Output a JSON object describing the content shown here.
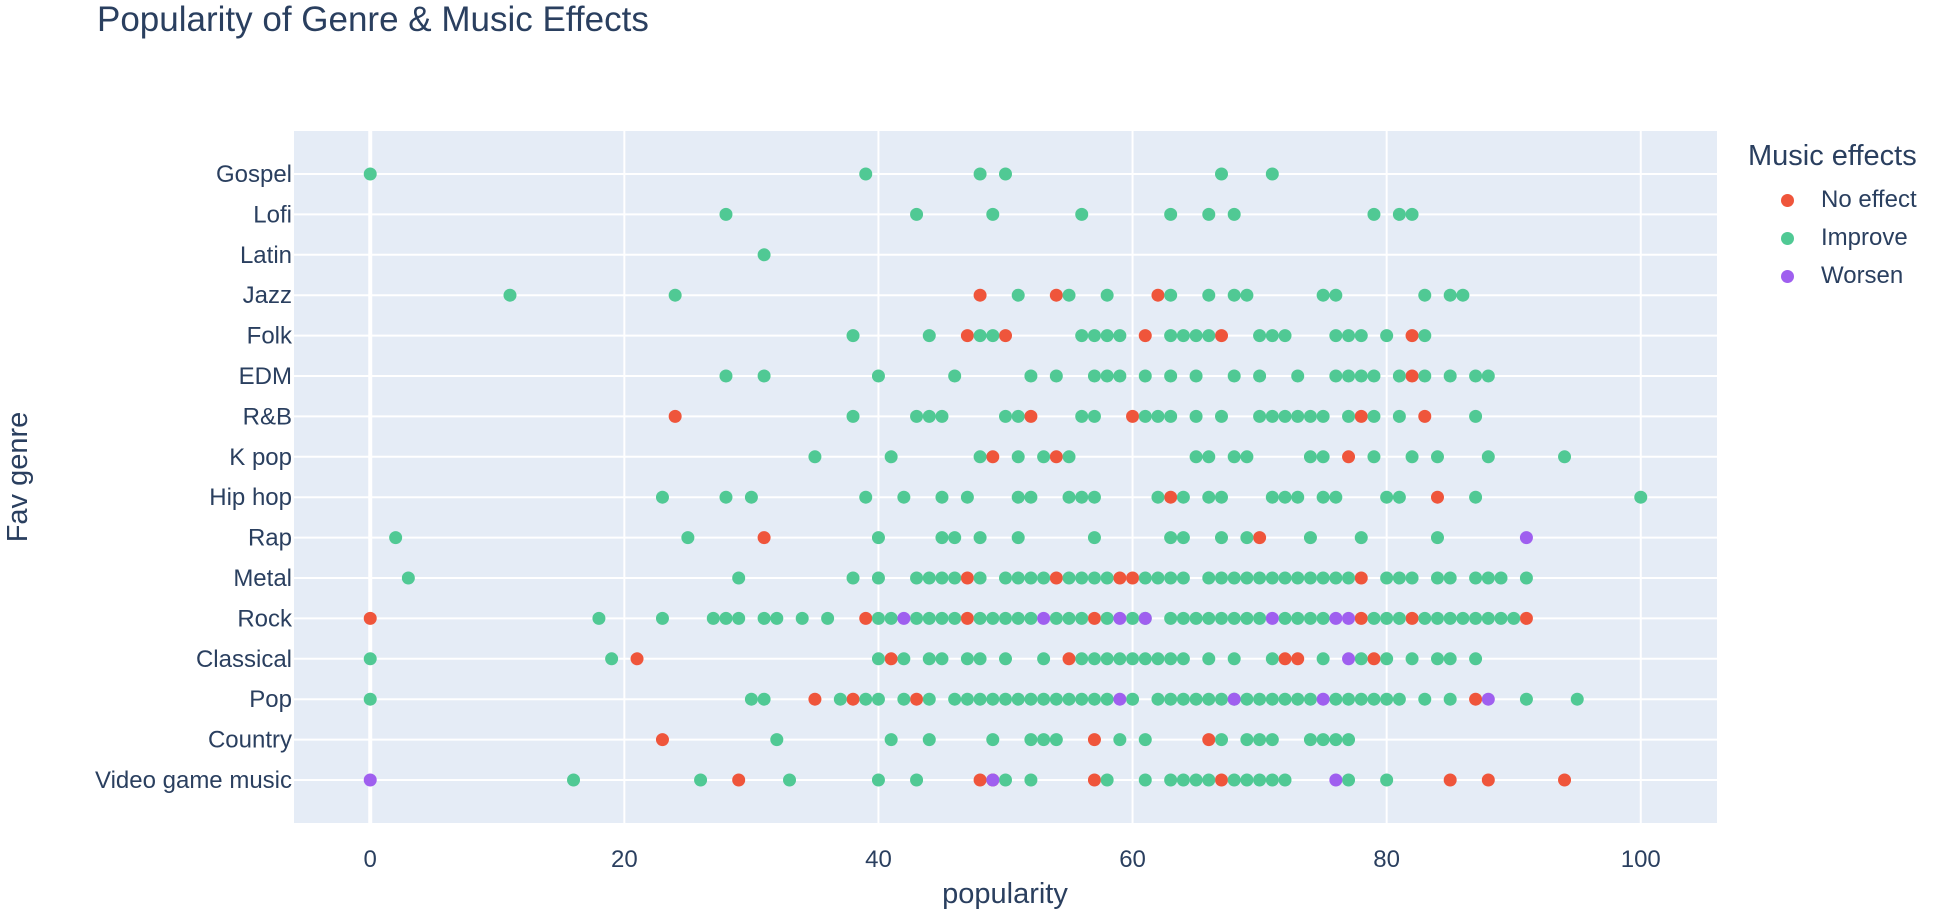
{
  "chart_data": {
    "type": "scatter",
    "title": "Popularity of Genre & Music Effects",
    "xlabel": "popularity",
    "ylabel": "Fav genre",
    "xlim": [
      -6,
      106
    ],
    "x_ticks": [
      0,
      20,
      40,
      60,
      80,
      100
    ],
    "grid": true,
    "legend_title": "Music effects",
    "legend_position": "right",
    "categories": [
      "Gospel",
      "Lofi",
      "Latin",
      "Jazz",
      "Folk",
      "EDM",
      "R&B",
      "K pop",
      "Hip hop",
      "Rap",
      "Metal",
      "Rock",
      "Classical",
      "Pop",
      "Country",
      "Video game music"
    ],
    "series": [
      {
        "name": "No effect",
        "color": "#EF553B",
        "points": [
          {
            "genre": "Jazz",
            "x": [
              48,
              54,
              62
            ]
          },
          {
            "genre": "Folk",
            "x": [
              47,
              50,
              61,
              67,
              82
            ]
          },
          {
            "genre": "EDM",
            "x": [
              82
            ]
          },
          {
            "genre": "R&B",
            "x": [
              24,
              52,
              60,
              78,
              83
            ]
          },
          {
            "genre": "K pop",
            "x": [
              49,
              54,
              77
            ]
          },
          {
            "genre": "Hip hop",
            "x": [
              63,
              84
            ]
          },
          {
            "genre": "Rap",
            "x": [
              31,
              70
            ]
          },
          {
            "genre": "Metal",
            "x": [
              47,
              54,
              59,
              60,
              78
            ]
          },
          {
            "genre": "Rock",
            "x": [
              0,
              39,
              47,
              57,
              78,
              82,
              91
            ]
          },
          {
            "genre": "Classical",
            "x": [
              21,
              41,
              55,
              72,
              73,
              79
            ]
          },
          {
            "genre": "Pop",
            "x": [
              35,
              38,
              43,
              87
            ]
          },
          {
            "genre": "Country",
            "x": [
              23,
              57,
              66
            ]
          },
          {
            "genre": "Video game music",
            "x": [
              29,
              48,
              49,
              57,
              67,
              85,
              88,
              94
            ]
          }
        ]
      },
      {
        "name": "Improve",
        "color": "#50C994",
        "points": [
          {
            "genre": "Gospel",
            "x": [
              0,
              39,
              48,
              50,
              67,
              71
            ]
          },
          {
            "genre": "Lofi",
            "x": [
              28,
              43,
              49,
              56,
              63,
              66,
              68,
              79,
              81,
              82
            ]
          },
          {
            "genre": "Latin",
            "x": [
              31
            ]
          },
          {
            "genre": "Jazz",
            "x": [
              11,
              24,
              51,
              55,
              58,
              63,
              66,
              68,
              69,
              75,
              76,
              83,
              85,
              86
            ]
          },
          {
            "genre": "Folk",
            "x": [
              38,
              44,
              48,
              49,
              56,
              57,
              58,
              59,
              63,
              64,
              65,
              66,
              70,
              71,
              72,
              76,
              77,
              78,
              80,
              83
            ]
          },
          {
            "genre": "EDM",
            "x": [
              28,
              31,
              40,
              46,
              52,
              54,
              57,
              58,
              59,
              61,
              63,
              65,
              68,
              70,
              73,
              76,
              77,
              78,
              79,
              81,
              83,
              85,
              87,
              88
            ]
          },
          {
            "genre": "R&B",
            "x": [
              38,
              43,
              44,
              45,
              50,
              51,
              56,
              57,
              61,
              62,
              63,
              65,
              67,
              70,
              71,
              72,
              73,
              74,
              75,
              77,
              79,
              81,
              87
            ]
          },
          {
            "genre": "K pop",
            "x": [
              35,
              41,
              48,
              51,
              53,
              55,
              65,
              66,
              68,
              69,
              74,
              75,
              79,
              82,
              84,
              88,
              94
            ]
          },
          {
            "genre": "Hip hop",
            "x": [
              23,
              28,
              30,
              39,
              42,
              45,
              47,
              51,
              52,
              55,
              56,
              57,
              62,
              64,
              66,
              67,
              71,
              72,
              73,
              75,
              76,
              80,
              81,
              87,
              100
            ]
          },
          {
            "genre": "Rap",
            "x": [
              2,
              25,
              40,
              45,
              46,
              48,
              51,
              57,
              63,
              64,
              67,
              69,
              74,
              78,
              84
            ]
          },
          {
            "genre": "Metal",
            "x": [
              3,
              29,
              38,
              40,
              43,
              44,
              45,
              46,
              48,
              50,
              51,
              52,
              53,
              55,
              56,
              57,
              58,
              61,
              62,
              63,
              64,
              66,
              67,
              68,
              69,
              70,
              71,
              72,
              73,
              74,
              75,
              76,
              77,
              80,
              81,
              82,
              84,
              85,
              87,
              88,
              89,
              91
            ]
          },
          {
            "genre": "Rock",
            "x": [
              18,
              23,
              27,
              28,
              29,
              31,
              32,
              34,
              36,
              40,
              41,
              43,
              44,
              45,
              46,
              48,
              49,
              50,
              51,
              52,
              54,
              55,
              56,
              58,
              60,
              61,
              63,
              64,
              65,
              66,
              67,
              68,
              69,
              70,
              72,
              73,
              74,
              75,
              79,
              80,
              81,
              83,
              84,
              85,
              86,
              87,
              88,
              89,
              90
            ]
          },
          {
            "genre": "Classical",
            "x": [
              0,
              19,
              40,
              42,
              44,
              45,
              47,
              48,
              50,
              53,
              56,
              57,
              58,
              59,
              60,
              61,
              62,
              63,
              64,
              66,
              68,
              71,
              75,
              78,
              80,
              82,
              84,
              85,
              87
            ]
          },
          {
            "genre": "Pop",
            "x": [
              0,
              30,
              31,
              37,
              39,
              40,
              42,
              44,
              46,
              47,
              48,
              49,
              50,
              51,
              52,
              53,
              54,
              55,
              56,
              57,
              58,
              60,
              62,
              63,
              64,
              65,
              66,
              67,
              68,
              69,
              70,
              71,
              72,
              73,
              74,
              76,
              77,
              78,
              79,
              80,
              81,
              83,
              85,
              91,
              95
            ]
          },
          {
            "genre": "Country",
            "x": [
              32,
              41,
              44,
              49,
              52,
              53,
              54,
              59,
              61,
              67,
              69,
              70,
              71,
              74,
              75,
              76,
              77
            ]
          },
          {
            "genre": "Video game music",
            "x": [
              16,
              26,
              33,
              40,
              43,
              50,
              52,
              58,
              61,
              63,
              64,
              65,
              66,
              68,
              69,
              70,
              71,
              72,
              77,
              80
            ]
          }
        ]
      },
      {
        "name": "Worsen",
        "color": "#9F5FEF",
        "points": [
          {
            "genre": "Rap",
            "x": [
              91
            ]
          },
          {
            "genre": "Rock",
            "x": [
              42,
              53,
              59,
              61,
              71,
              76,
              77
            ]
          },
          {
            "genre": "Classical",
            "x": [
              77
            ]
          },
          {
            "genre": "Pop",
            "x": [
              59,
              68,
              75,
              88
            ]
          },
          {
            "genre": "Video game music",
            "x": [
              0,
              49,
              76
            ]
          }
        ]
      }
    ]
  }
}
